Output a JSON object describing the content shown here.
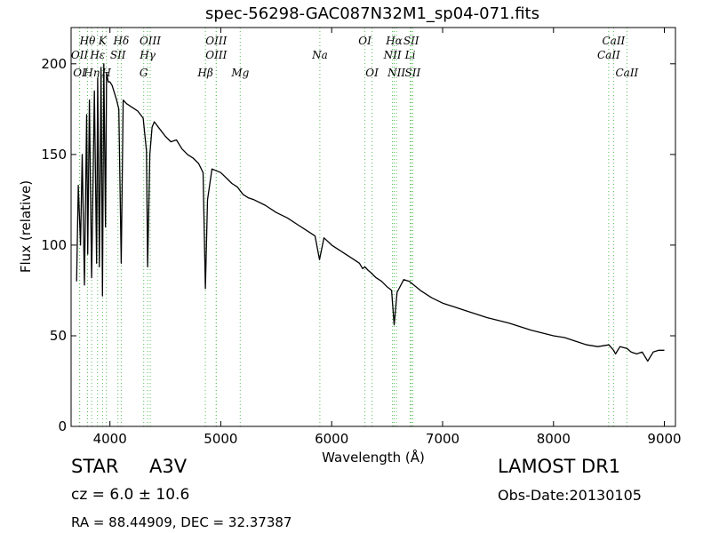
{
  "chart_data": {
    "type": "line",
    "title": "spec-56298-GAC087N32M1_sp04-071.fits",
    "xlabel": "Wavelength (Å)",
    "ylabel": "Flux (relative)",
    "xlim": [
      3650,
      9100
    ],
    "ylim": [
      0,
      220
    ],
    "x_ticks": [
      4000,
      5000,
      6000,
      7000,
      8000,
      9000
    ],
    "y_ticks": [
      0,
      50,
      100,
      150,
      200
    ],
    "grid": false,
    "colors": {
      "spectrum": "#000000",
      "line_markers": "#55bb55"
    },
    "series": [
      {
        "x": [
          3700,
          3715,
          3735,
          3750,
          3770,
          3790,
          3800,
          3815,
          3835,
          3860,
          3880,
          3890,
          3905,
          3920,
          3933,
          3945,
          3960,
          3970,
          3985,
          4000,
          4020,
          4060,
          4080,
          4102,
          4120,
          4150,
          4200,
          4250,
          4300,
          4330,
          4340,
          4360,
          4380,
          4400,
          4450,
          4500,
          4550,
          4600,
          4650,
          4700,
          4750,
          4800,
          4840,
          4861,
          4880,
          4920,
          4960,
          5000,
          5050,
          5100,
          5150,
          5200,
          5250,
          5300,
          5400,
          5500,
          5600,
          5700,
          5800,
          5850,
          5890,
          5930,
          6000,
          6100,
          6200,
          6250,
          6280,
          6300,
          6330,
          6350,
          6400,
          6450,
          6500,
          6540,
          6563,
          6590,
          6650,
          6700,
          6800,
          6900,
          7000,
          7200,
          7400,
          7600,
          7800,
          8000,
          8100,
          8200,
          8300,
          8400,
          8500,
          8542,
          8560,
          8600,
          8662,
          8700,
          8750,
          8800,
          8850,
          8900,
          8950,
          9000
        ],
        "y": [
          80,
          133,
          100,
          150,
          78,
          172,
          95,
          180,
          82,
          185,
          90,
          192,
          88,
          198,
          72,
          200,
          110,
          195,
          190,
          190,
          188,
          180,
          175,
          90,
          180,
          178,
          176,
          174,
          170,
          152,
          88,
          150,
          165,
          168,
          164,
          160,
          157,
          158,
          153,
          150,
          148,
          145,
          140,
          76,
          125,
          142,
          141,
          140,
          137,
          134,
          132,
          128,
          126,
          125,
          122,
          118,
          115,
          111,
          107,
          105,
          92,
          104,
          100,
          96,
          92,
          90,
          87,
          88,
          86,
          85,
          82,
          80,
          77,
          75,
          56,
          74,
          81,
          80,
          75,
          71,
          68,
          64,
          60,
          57,
          53,
          50,
          49,
          47,
          45,
          44,
          45,
          42,
          40,
          44,
          43,
          41,
          40,
          41,
          36,
          41,
          42,
          42
        ]
      }
    ],
    "line_markers": [
      {
        "label": "OII",
        "x": 3727,
        "row": 2
      },
      {
        "label": "OI",
        "x": 3727,
        "row": 3
      },
      {
        "label": "Hθ",
        "x": 3798,
        "row": 1
      },
      {
        "label": "Hη",
        "x": 3835,
        "row": 3
      },
      {
        "label": "Hε",
        "x": 3889,
        "row": 2
      },
      {
        "label": "K",
        "x": 3934,
        "row": 1
      },
      {
        "label": "H",
        "x": 3968,
        "row": 3
      },
      {
        "label": "SII",
        "x": 4072,
        "row": 2
      },
      {
        "label": "Hδ",
        "x": 4102,
        "row": 1
      },
      {
        "label": "OIII",
        "x": 4363,
        "row": 1
      },
      {
        "label": "Hγ",
        "x": 4340,
        "row": 2
      },
      {
        "label": "G",
        "x": 4305,
        "row": 3
      },
      {
        "label": "OIII",
        "x": 4959,
        "row": 1
      },
      {
        "label": "OIII",
        "x": 4959,
        "row": 2
      },
      {
        "label": "Hβ",
        "x": 4861,
        "row": 3
      },
      {
        "label": "Mg",
        "x": 5175,
        "row": 3
      },
      {
        "label": "Na",
        "x": 5893,
        "row": 2
      },
      {
        "label": "OI",
        "x": 6300,
        "row": 1
      },
      {
        "label": "OI",
        "x": 6364,
        "row": 3
      },
      {
        "label": "Hα",
        "x": 6563,
        "row": 1
      },
      {
        "label": "NII",
        "x": 6548,
        "row": 2
      },
      {
        "label": "NII",
        "x": 6584,
        "row": 3
      },
      {
        "label": "SII",
        "x": 6717,
        "row": 1
      },
      {
        "label": "Li",
        "x": 6708,
        "row": 2
      },
      {
        "label": "SII",
        "x": 6731,
        "row": 3
      },
      {
        "label": "CaII",
        "x": 8542,
        "row": 1
      },
      {
        "label": "CaII",
        "x": 8498,
        "row": 2
      },
      {
        "label": "CaII",
        "x": 8662,
        "row": 3
      }
    ]
  },
  "info": {
    "object_class": "STAR",
    "subclass": "A3V",
    "survey": "LAMOST DR1",
    "redshift": "cz = 6.0 ± 10.6",
    "obs_date": "Obs-Date:20130105",
    "coords": "RA = 88.44909, DEC = 32.37387"
  }
}
